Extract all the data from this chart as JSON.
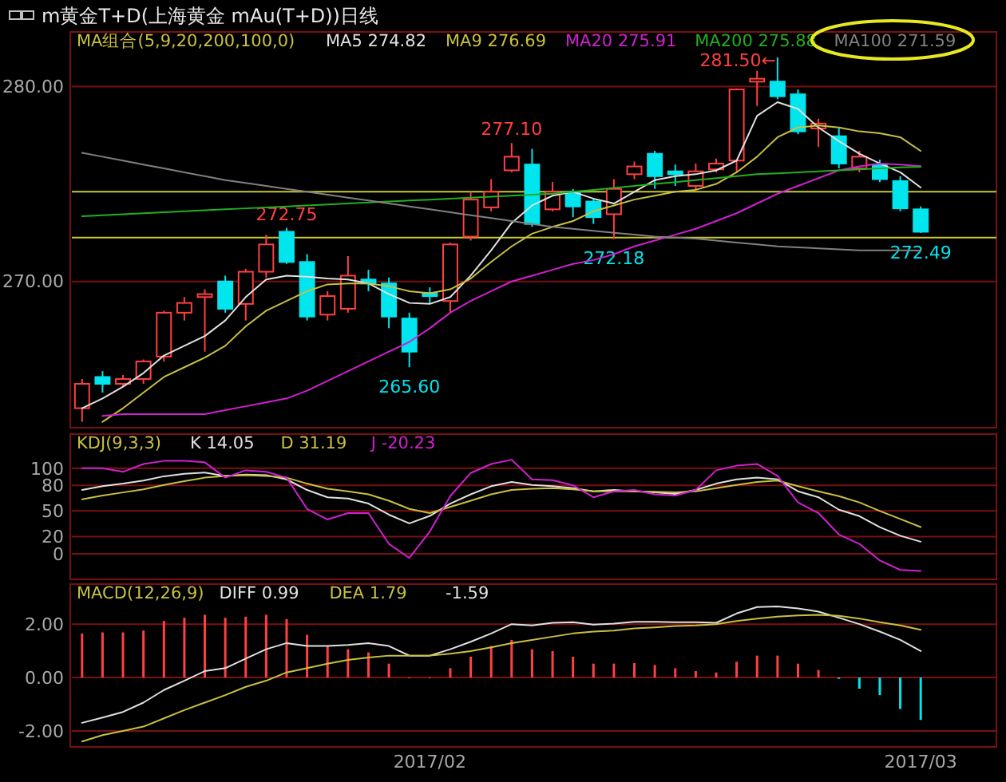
{
  "chart_data": [
    {
      "type": "candlestick",
      "title": "m黄金T+D(上海黄金 mAu(T+D))日线",
      "subtitle": "MA组合(5,9,20,200,100,0)",
      "categories": [
        null,
        null,
        null,
        null,
        null,
        null,
        null,
        null,
        null,
        null,
        null,
        null,
        null,
        null,
        null,
        null,
        null,
        null,
        null,
        null,
        null,
        null,
        null,
        null,
        null,
        null,
        null,
        null,
        null,
        null,
        null,
        null,
        null,
        null,
        null,
        null,
        null,
        null,
        null,
        null,
        null,
        null
      ],
      "ohlc": [
        [
          263.5,
          265.0,
          262.8,
          264.75
        ],
        [
          265.1,
          265.4,
          264.3,
          264.75
        ],
        [
          264.75,
          265.2,
          264.6,
          265.0
        ],
        [
          265.0,
          266.0,
          264.75,
          265.9
        ],
        [
          266.15,
          268.5,
          265.9,
          268.4
        ],
        [
          268.4,
          269.2,
          268.0,
          268.9
        ],
        [
          269.2,
          269.6,
          266.4,
          269.35
        ],
        [
          270.0,
          270.3,
          268.4,
          268.6
        ],
        [
          268.85,
          270.65,
          268.0,
          270.5
        ],
        [
          270.5,
          272.4,
          270.2,
          271.9
        ],
        [
          272.55,
          272.75,
          270.9,
          271.0
        ],
        [
          271.0,
          271.4,
          268.0,
          268.2
        ],
        [
          268.3,
          269.5,
          268.0,
          269.25
        ],
        [
          268.6,
          271.3,
          268.4,
          270.3
        ],
        [
          270.1,
          270.6,
          269.5,
          269.9
        ],
        [
          269.9,
          270.2,
          267.6,
          268.2
        ],
        [
          268.1,
          268.4,
          265.6,
          266.4
        ],
        [
          269.4,
          269.7,
          268.85,
          269.25
        ],
        [
          269.0,
          272.0,
          268.4,
          271.9
        ],
        [
          272.3,
          274.6,
          272.1,
          274.2
        ],
        [
          273.8,
          275.25,
          273.6,
          274.6
        ],
        [
          275.7,
          277.1,
          275.6,
          276.4
        ],
        [
          276.0,
          276.8,
          272.8,
          272.95
        ],
        [
          273.7,
          275.1,
          273.6,
          274.6
        ],
        [
          274.6,
          274.75,
          273.3,
          273.85
        ],
        [
          274.1,
          274.25,
          272.95,
          273.3
        ],
        [
          273.45,
          275.25,
          272.18,
          274.75
        ],
        [
          275.5,
          276.15,
          275.25,
          275.9
        ],
        [
          276.55,
          276.7,
          274.75,
          275.4
        ],
        [
          275.65,
          276.0,
          274.9,
          275.5
        ],
        [
          274.9,
          276.05,
          274.7,
          275.65
        ],
        [
          275.75,
          276.3,
          275.6,
          276.05
        ],
        [
          276.2,
          279.9,
          275.6,
          279.85
        ],
        [
          280.25,
          280.8,
          279.0,
          280.4
        ],
        [
          280.25,
          281.5,
          279.35,
          279.5
        ],
        [
          279.6,
          279.85,
          277.55,
          277.7
        ],
        [
          277.85,
          278.35,
          276.9,
          278.1
        ],
        [
          277.45,
          277.85,
          275.8,
          276.05
        ],
        [
          275.8,
          276.7,
          275.6,
          276.4
        ],
        [
          276.0,
          276.25,
          275.1,
          275.25
        ],
        [
          275.15,
          275.4,
          273.6,
          273.75
        ],
        [
          273.7,
          273.85,
          272.49,
          272.55
        ]
      ],
      "colors": [
        "#ff4040",
        "#00e5ee",
        "#ff4040",
        "#ff4040",
        "#ff4040",
        "#ff4040",
        "#ff4040",
        "#00e5ee",
        "#ff4040",
        "#ff4040",
        "#00e5ee",
        "#00e5ee",
        "#ff4040",
        "#ff4040",
        "#00e5ee",
        "#00e5ee",
        "#00e5ee",
        "#00e5ee",
        "#ff4040",
        "#ff4040",
        "#ff4040",
        "#ff4040",
        "#00e5ee",
        "#ff4040",
        "#00e5ee",
        "#00e5ee",
        "#ff4040",
        "#ff4040",
        "#00e5ee",
        "#00e5ee",
        "#ff4040",
        "#ff4040",
        "#ff4040",
        "#ff4040",
        "#00e5ee",
        "#00e5ee",
        "#ff4040",
        "#00e5ee",
        "#ff4040",
        "#00e5ee",
        "#00e5ee",
        "#00e5ee"
      ],
      "series": [
        {
          "type": "line",
          "name": "MA5 274.82",
          "color": "#e0e0e0",
          "values": [
            263.5,
            264.0,
            264.6,
            265.3,
            266.2,
            266.7,
            267.2,
            268.0,
            269.2,
            270.1,
            270.3,
            270.25,
            270.15,
            270.1,
            269.9,
            269.35,
            268.9,
            268.85,
            269.2,
            270.3,
            271.6,
            273.0,
            273.9,
            274.4,
            274.6,
            274.25,
            274.0,
            274.6,
            275.2,
            275.4,
            275.5,
            275.7,
            276.2,
            278.5,
            279.2,
            278.85,
            277.9,
            277.2,
            276.55,
            276.05,
            275.6,
            274.82
          ]
        },
        {
          "type": "line",
          "name": "MA9 276.69",
          "color": "#c8c040",
          "values": [
            null,
            262.8,
            263.5,
            264.3,
            265.1,
            265.6,
            266.1,
            266.7,
            267.7,
            268.5,
            269.0,
            269.5,
            269.85,
            269.9,
            269.9,
            269.75,
            269.5,
            269.4,
            269.6,
            270.15,
            271.0,
            271.8,
            272.45,
            272.8,
            273.1,
            273.6,
            273.9,
            274.2,
            274.4,
            274.6,
            274.7,
            275.0,
            275.6,
            276.4,
            277.4,
            277.9,
            278.0,
            277.9,
            277.7,
            277.6,
            277.4,
            276.69
          ]
        },
        {
          "type": "line",
          "name": "MA20 275.91",
          "color": "#d020d0",
          "values": [
            null,
            263.1,
            263.2,
            263.2,
            263.2,
            263.2,
            263.2,
            263.4,
            263.6,
            263.8,
            264.0,
            264.4,
            264.9,
            265.4,
            265.9,
            266.4,
            266.9,
            267.6,
            268.4,
            269.0,
            269.5,
            270.0,
            270.3,
            270.6,
            270.9,
            271.1,
            271.4,
            271.8,
            272.1,
            272.4,
            272.7,
            273.1,
            273.5,
            274.0,
            274.5,
            274.9,
            275.3,
            275.7,
            275.9,
            276.05,
            276.0,
            275.91
          ]
        },
        {
          "type": "line",
          "name": "MA200 275.88",
          "color": "#20b020",
          "values": [
            273.35,
            273.4,
            273.45,
            273.5,
            273.55,
            273.6,
            273.65,
            273.7,
            273.75,
            273.8,
            273.85,
            273.9,
            273.95,
            274.0,
            274.05,
            274.1,
            274.15,
            274.2,
            274.25,
            274.3,
            274.35,
            274.4,
            274.45,
            274.5,
            274.6,
            274.7,
            274.8,
            274.9,
            275.0,
            275.1,
            275.2,
            275.3,
            275.4,
            275.5,
            275.55,
            275.6,
            275.65,
            275.7,
            275.75,
            275.8,
            275.85,
            275.88
          ]
        },
        {
          "type": "line",
          "name": "MA100 271.59",
          "color": "#808080",
          "values": [
            276.6,
            276.4,
            276.2,
            276.0,
            275.8,
            275.6,
            275.4,
            275.2,
            275.05,
            274.9,
            274.75,
            274.6,
            274.45,
            274.3,
            274.15,
            274.0,
            273.85,
            273.7,
            273.55,
            273.4,
            273.25,
            273.1,
            272.95,
            272.8,
            272.7,
            272.6,
            272.5,
            272.4,
            272.3,
            272.25,
            272.2,
            272.1,
            272.0,
            271.9,
            271.8,
            271.75,
            271.7,
            271.65,
            271.6,
            271.6,
            271.6,
            271.59
          ]
        }
      ],
      "ylim": [
        262.5,
        282.8
      ],
      "yticks": [
        {
          "value": 270,
          "label": "270.00"
        },
        {
          "value": 280,
          "label": "280.00"
        }
      ],
      "ref_lines": [
        {
          "axis": "y",
          "value": 274.6,
          "color": "#c8c832"
        },
        {
          "axis": "y",
          "value": 272.25,
          "color": "#c8c832"
        }
      ],
      "annotations": [
        {
          "text": "272.75",
          "y": 272.75
        },
        {
          "text": "277.10",
          "y": 277.1
        },
        "281.50←",
        {
          "text": "265.60",
          "y": 265.6
        },
        {
          "text": "272.18",
          "y": 272.18
        },
        {
          "text": "272.49",
          "y": 272.49
        }
      ],
      "legend": "top",
      "tick_labels": "y",
      "grid": "y"
    },
    {
      "type": "line",
      "title": "KDJ(9,3,3)",
      "categories": [
        null,
        null,
        null,
        null,
        null,
        null,
        null,
        null,
        null,
        null,
        null,
        null,
        null,
        null,
        null,
        null,
        null,
        null,
        null,
        null,
        null,
        null,
        null,
        null,
        null,
        null,
        null,
        null,
        null,
        null,
        null,
        null,
        null,
        null,
        null,
        null,
        null,
        null,
        null,
        null,
        null,
        null
      ],
      "series": [
        {
          "name": "K 14.05",
          "color": "#e0e0e0",
          "values": [
            74.6,
            79,
            82,
            85.6,
            90.6,
            93.5,
            95,
            91,
            92.5,
            92,
            87,
            74.6,
            66,
            64.5,
            58.7,
            45.7,
            35.5,
            44.2,
            58.7,
            69.5,
            79,
            84,
            80.5,
            79,
            76.8,
            73,
            74.6,
            73,
            71.7,
            70,
            74.6,
            82,
            87,
            89,
            87,
            73,
            66,
            51.5,
            44,
            31,
            21,
            14.05
          ]
        },
        {
          "name": "D 31.19",
          "color": "#c8c040",
          "values": [
            63.7,
            68,
            71.7,
            75.4,
            80.4,
            84.8,
            89,
            91,
            92,
            91,
            89,
            82,
            76,
            73,
            69.5,
            62,
            52.4,
            47.5,
            54.8,
            62,
            69.5,
            74.6,
            76,
            76.8,
            75.4,
            73,
            73,
            73,
            72.5,
            71.7,
            73,
            76.8,
            80.4,
            84,
            85.6,
            79,
            73,
            67.4,
            60,
            50,
            40.6,
            31.19
          ]
        },
        {
          "name": "J -20.23",
          "color": "#d020d0",
          "values": [
            100,
            100,
            95.8,
            105,
            108.6,
            108.6,
            107,
            89,
            97.6,
            95.8,
            89,
            52.4,
            40,
            47.5,
            47.5,
            11.5,
            -5,
            26,
            67.4,
            94.5,
            105,
            110,
            87,
            86,
            80,
            66,
            73,
            74.6,
            69.5,
            68,
            74.6,
            97.6,
            103,
            105,
            91,
            60,
            47.5,
            22.5,
            11.5,
            -8,
            -19,
            -20.23
          ]
        }
      ],
      "ylim": [
        -30,
        140
      ],
      "yticks": [
        0,
        20,
        50,
        80,
        100
      ],
      "legend": "top",
      "tick_labels": "y",
      "grid": "y"
    },
    {
      "type": "line",
      "title": "MACD(12,26,9)",
      "categories": [
        null,
        null,
        null,
        null,
        null,
        null,
        null,
        null,
        null,
        null,
        null,
        null,
        null,
        null,
        null,
        null,
        null,
        "2017/02",
        null,
        null,
        null,
        null,
        null,
        null,
        null,
        null,
        null,
        null,
        null,
        null,
        null,
        null,
        null,
        null,
        null,
        null,
        null,
        null,
        null,
        null,
        null,
        "2017/03"
      ],
      "series": [
        {
          "type": "bar",
          "colors": [
            "#ff4040",
            "#ff4040",
            "#ff4040",
            "#ff4040",
            "#ff4040",
            "#ff4040",
            "#ff4040",
            "#ff4040",
            "#ff4040",
            "#ff4040",
            "#ff4040",
            "#ff4040",
            "#ff4040",
            "#ff4040",
            "#ff4040",
            "#ff4040",
            "#ff4040",
            "#ff4040",
            "#ff4040",
            "#ff4040",
            "#ff4040",
            "#ff4040",
            "#ff4040",
            "#ff4040",
            "#ff4040",
            "#ff4040",
            "#ff4040",
            "#ff4040",
            "#ff4040",
            "#ff4040",
            "#ff4040",
            "#ff4040",
            "#ff4040",
            "#ff4040",
            "#ff4040",
            "#ff4040",
            "#ff4040",
            "#00e5ee",
            "#00e5ee",
            "#00e5ee",
            "#00e5ee",
            "#00e5ee"
          ],
          "values": [
            1.65,
            1.69,
            1.69,
            1.76,
            2.12,
            2.24,
            2.35,
            2.24,
            2.28,
            2.35,
            2.19,
            1.6,
            1.18,
            1.06,
            0.94,
            0.52,
            0,
            0,
            0.35,
            0.78,
            1.18,
            1.41,
            1.06,
            0.99,
            0.78,
            0.52,
            0.52,
            0.54,
            0.47,
            0.35,
            0.24,
            0.19,
            0.59,
            0.82,
            0.82,
            0.52,
            0.28,
            -0.05,
            -0.42,
            -0.66,
            -1.18,
            -1.59
          ]
        },
        {
          "type": "line",
          "name": "DIFF 0.99",
          "color": "#e0e0e0",
          "values": [
            -1.7,
            -1.5,
            -1.29,
            -0.94,
            -0.47,
            -0.12,
            0.24,
            0.35,
            0.71,
            1.06,
            1.29,
            1.18,
            1.18,
            1.22,
            1.29,
            1.18,
            0.82,
            0.82,
            1.06,
            1.34,
            1.65,
            2.0,
            1.95,
            2.05,
            2.07,
            1.98,
            2.02,
            2.09,
            2.09,
            2.07,
            2.07,
            2.05,
            2.4,
            2.64,
            2.66,
            2.59,
            2.47,
            2.24,
            2.0,
            1.72,
            1.41,
            0.99
          ]
        },
        {
          "type": "line",
          "name": "DEA 1.79",
          "color": "#c8c040",
          "values": [
            -2.4,
            -2.16,
            -2.0,
            -1.84,
            -1.53,
            -1.22,
            -0.94,
            -0.66,
            -0.35,
            -0.12,
            0.19,
            0.35,
            0.52,
            0.66,
            0.75,
            0.82,
            0.82,
            0.82,
            0.89,
            0.99,
            1.13,
            1.29,
            1.41,
            1.53,
            1.65,
            1.72,
            1.76,
            1.84,
            1.88,
            1.93,
            1.95,
            2.0,
            2.12,
            2.21,
            2.28,
            2.33,
            2.35,
            2.31,
            2.21,
            2.07,
            1.95,
            1.79
          ]
        }
      ],
      "annotations": [
        "-1.59"
      ],
      "ylim": [
        -2.6,
        3.5
      ],
      "yticks": [
        {
          "value": -2,
          "label": "-2.00"
        },
        {
          "value": 0,
          "label": "0.00"
        },
        {
          "value": 2,
          "label": "2.00"
        }
      ],
      "legend": "top",
      "grid": "y"
    }
  ]
}
